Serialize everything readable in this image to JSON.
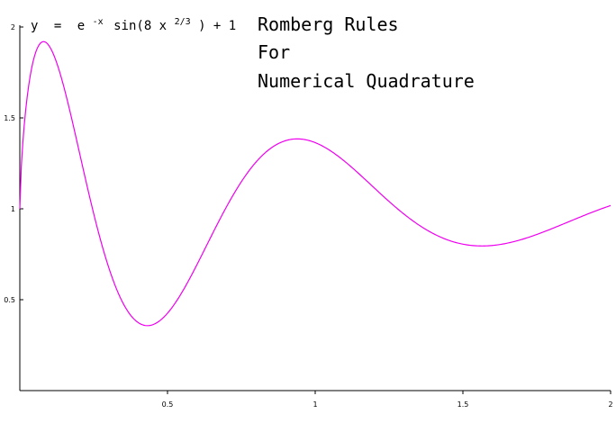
{
  "chart_data": {
    "type": "line",
    "title_lines": [
      "Romberg Rules",
      "For",
      "Numerical Quadrature"
    ],
    "formula": {
      "y": "y",
      "eq": "=",
      "e": "e",
      "neg_x": "-x",
      "sin_open": "sin(8 x",
      "exponent": "2/3",
      "close_plus": ") + 1"
    },
    "xlabel": "",
    "ylabel": "",
    "xlim": [
      0,
      2
    ],
    "ylim": [
      0,
      2
    ],
    "x_ticks": [
      {
        "value": 0.5,
        "label": "0.5"
      },
      {
        "value": 1,
        "label": "1"
      },
      {
        "value": 1.5,
        "label": "1.5"
      },
      {
        "value": 2,
        "label": "2"
      }
    ],
    "y_ticks": [
      {
        "value": 0.5,
        "label": "0.5"
      },
      {
        "value": 1,
        "label": "1"
      },
      {
        "value": 1.5,
        "label": "1.5"
      },
      {
        "value": 2,
        "label": "2"
      }
    ],
    "grid": false,
    "series": [
      {
        "color": "#ee00ee",
        "function": "exp(-x)*sin(8*x^(2/3))+1",
        "x": [
          0,
          0.01,
          0.02,
          0.04,
          0.06,
          0.08,
          0.1,
          0.12,
          0.15,
          0.2,
          0.25,
          0.3,
          0.35,
          0.4,
          0.43,
          0.45,
          0.5,
          0.55,
          0.6,
          0.65,
          0.7,
          0.75,
          0.8,
          0.85,
          0.9,
          0.93,
          0.96,
          1.0,
          1.05,
          1.1,
          1.15,
          1.2,
          1.25,
          1.3,
          1.35,
          1.4,
          1.45,
          1.5,
          1.55,
          1.58,
          1.62,
          1.66,
          1.7,
          1.75,
          1.8,
          1.85,
          1.9,
          1.95,
          2.0
        ],
        "y": [
          1.0,
          1.36,
          1.54,
          1.75,
          1.86,
          1.91,
          1.92,
          1.89,
          1.78,
          1.49,
          1.08,
          0.66,
          0.43,
          0.36,
          0.355,
          0.36,
          0.45,
          0.62,
          0.81,
          1.0,
          1.16,
          1.28,
          1.34,
          1.37,
          1.38,
          1.38,
          1.37,
          1.34,
          1.28,
          1.2,
          1.11,
          1.02,
          0.94,
          0.88,
          0.84,
          0.81,
          0.8,
          0.8,
          0.8,
          0.8,
          0.81,
          0.82,
          0.84,
          0.87,
          0.9,
          0.93,
          0.96,
          0.99,
          1.02
        ]
      }
    ]
  }
}
